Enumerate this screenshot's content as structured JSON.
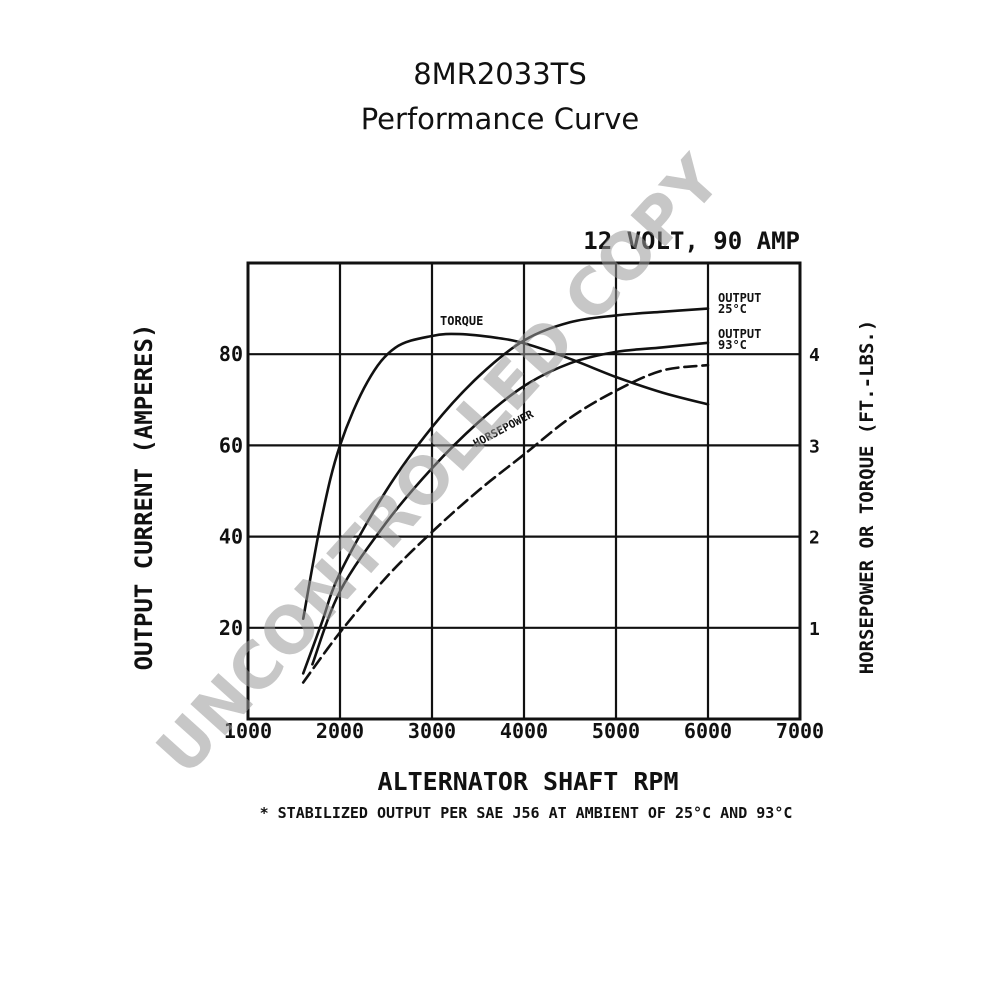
{
  "header": {
    "title": "8MR2033TS",
    "subtitle": "Performance Curve"
  },
  "watermark": "UNCONTROLLED COPY",
  "chart_data": {
    "type": "line",
    "spec_label": "12 VOLT, 90 AMP",
    "xlabel": "ALTERNATOR SHAFT RPM",
    "ylabel": "OUTPUT CURRENT (AMPERES)",
    "y2label": "HORSEPOWER OR TORQUE (FT.-LBS.)",
    "footnote": "* STABILIZED OUTPUT PER SAE J56 AT AMBIENT OF 25°C AND 93°C",
    "xlim": [
      1000,
      7000
    ],
    "ylim": [
      0,
      100
    ],
    "y2lim": [
      0,
      5
    ],
    "x_ticks": [
      1000,
      2000,
      3000,
      4000,
      5000,
      6000,
      7000
    ],
    "x_tick_labels": [
      "1000",
      "2000",
      "3000",
      "4000",
      "5000",
      "6000",
      "7000"
    ],
    "y_ticks": [
      20,
      40,
      60,
      80
    ],
    "y_tick_labels": [
      "20",
      "40",
      "60",
      "80"
    ],
    "y2_ticks": [
      1,
      2,
      3,
      4
    ],
    "y2_tick_labels": [
      "1",
      "2",
      "3",
      "4"
    ],
    "grid": true,
    "series": [
      {
        "name": "OUTPUT 25°C",
        "label_lines": [
          "OUTPUT",
          "25°C"
        ],
        "axis": "left",
        "style": "solid",
        "x": [
          1600,
          1800,
          2000,
          2500,
          3000,
          3500,
          4000,
          4500,
          5000,
          5500,
          6000
        ],
        "y": [
          10,
          21,
          32,
          50,
          64,
          75,
          83,
          87,
          88.5,
          89.3,
          90
        ]
      },
      {
        "name": "OUTPUT 93°C",
        "label_lines": [
          "OUTPUT",
          "93°C"
        ],
        "axis": "left",
        "style": "solid",
        "x": [
          1700,
          2000,
          2500,
          3000,
          3500,
          4000,
          4500,
          5000,
          5500,
          6000
        ],
        "y": [
          12,
          28,
          43,
          55,
          65,
          73,
          78,
          80.5,
          81.5,
          82.5
        ]
      },
      {
        "name": "TORQUE",
        "label_lines": [
          "TORQUE"
        ],
        "axis": "right",
        "style": "solid",
        "x": [
          1600,
          1800,
          2000,
          2300,
          2600,
          3000,
          3300,
          3700,
          4000,
          4500,
          5000,
          5500,
          6000
        ],
        "y": [
          1.1,
          2.2,
          3.0,
          3.7,
          4.07,
          4.2,
          4.22,
          4.18,
          4.12,
          3.95,
          3.75,
          3.58,
          3.45
        ]
      },
      {
        "name": "HORSEPOWER",
        "label_lines": [
          "HORSEPOWER"
        ],
        "axis": "right",
        "style": "dashed",
        "x": [
          1600,
          2000,
          2500,
          3000,
          3500,
          4000,
          4500,
          5000,
          5500,
          6000
        ],
        "y": [
          0.4,
          0.95,
          1.55,
          2.05,
          2.5,
          2.9,
          3.3,
          3.6,
          3.82,
          3.88
        ]
      }
    ]
  }
}
